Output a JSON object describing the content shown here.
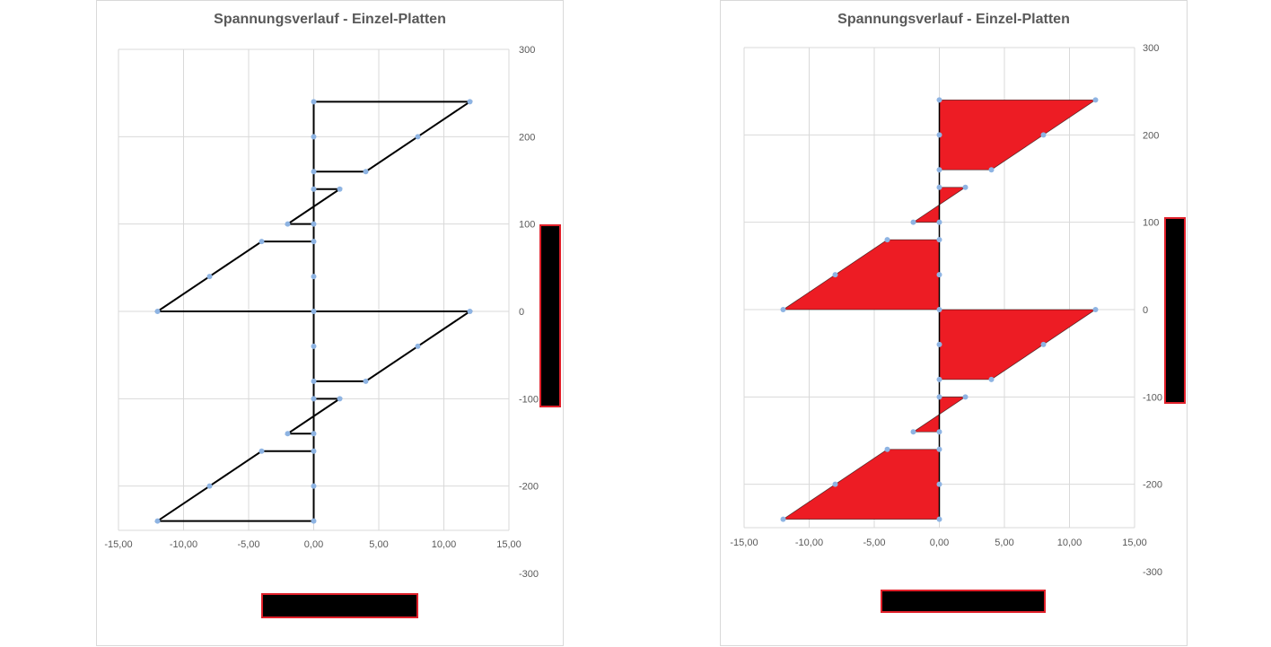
{
  "chart_data": [
    {
      "type": "line",
      "title": "Spannungsverlauf - Einzel-Platten",
      "xlabel": "",
      "ylabel": "",
      "xlim": [
        -15,
        15
      ],
      "ylim": [
        -300,
        300
      ],
      "x_ticks": [
        "-15,00",
        "-10,00",
        "-5,00",
        "0,00",
        "5,00",
        "10,00",
        "15,00"
      ],
      "y_ticks": [
        "300",
        "200",
        "100",
        "0",
        "-100",
        "-200",
        "-300"
      ],
      "grid": true,
      "series": [
        {
          "values": [
            [
              0,
              240
            ],
            [
              12,
              240
            ],
            [
              8,
              200
            ],
            [
              4,
              160
            ],
            [
              0,
              160
            ],
            [
              0,
              140
            ],
            [
              2,
              140
            ],
            [
              -2,
              100
            ],
            [
              0,
              100
            ],
            [
              0,
              80
            ],
            [
              -4,
              80
            ],
            [
              -8,
              40
            ],
            [
              -12,
              0
            ],
            [
              0,
              0
            ],
            [
              12,
              0
            ],
            [
              8,
              -40
            ],
            [
              4,
              -80
            ],
            [
              0,
              -80
            ],
            [
              0,
              -100
            ],
            [
              2,
              -100
            ],
            [
              -2,
              -140
            ],
            [
              0,
              -140
            ],
            [
              0,
              -160
            ],
            [
              -4,
              -160
            ],
            [
              -8,
              -200
            ],
            [
              -12,
              -240
            ],
            [
              0,
              -240
            ],
            [
              0,
              240
            ]
          ],
          "points": [
            [
              0,
              240
            ],
            [
              12,
              240
            ],
            [
              0,
              200
            ],
            [
              8,
              200
            ],
            [
              0,
              160
            ],
            [
              4,
              160
            ],
            [
              0,
              140
            ],
            [
              2,
              140
            ],
            [
              0,
              100
            ],
            [
              -2,
              100
            ],
            [
              0,
              80
            ],
            [
              -4,
              80
            ],
            [
              0,
              40
            ],
            [
              -8,
              40
            ],
            [
              0,
              0
            ],
            [
              -12,
              0
            ],
            [
              12,
              0
            ],
            [
              0,
              -40
            ],
            [
              8,
              -40
            ],
            [
              0,
              -80
            ],
            [
              4,
              -80
            ],
            [
              0,
              -100
            ],
            [
              2,
              -100
            ],
            [
              0,
              -140
            ],
            [
              -2,
              -140
            ],
            [
              0,
              -160
            ],
            [
              -4,
              -160
            ],
            [
              0,
              -200
            ],
            [
              -8,
              -200
            ],
            [
              0,
              -240
            ],
            [
              -12,
              -240
            ]
          ],
          "line_color": "#000000",
          "marker_color": "#8eb4e3"
        }
      ]
    },
    {
      "type": "area",
      "title": "Spannungsverlauf - Einzel-Platten",
      "xlabel": "",
      "ylabel": "",
      "xlim": [
        -15,
        15
      ],
      "ylim": [
        -300,
        300
      ],
      "x_ticks": [
        "-15,00",
        "-10,00",
        "-5,00",
        "0,00",
        "5,00",
        "10,00",
        "15,00"
      ],
      "y_ticks": [
        "300",
        "200",
        "100",
        "0",
        "-100",
        "-200",
        "-300"
      ],
      "grid": true,
      "series": [
        {
          "polygons": [
            [
              [
                0,
                240
              ],
              [
                12,
                240
              ],
              [
                4,
                160
              ],
              [
                0,
                160
              ]
            ],
            [
              [
                0,
                140
              ],
              [
                2,
                140
              ],
              [
                0,
                120
              ]
            ],
            [
              [
                0,
                120
              ],
              [
                -2,
                100
              ],
              [
                0,
                100
              ]
            ],
            [
              [
                0,
                80
              ],
              [
                -4,
                80
              ],
              [
                -12,
                0
              ],
              [
                0,
                0
              ]
            ],
            [
              [
                0,
                0
              ],
              [
                12,
                0
              ],
              [
                4,
                -80
              ],
              [
                0,
                -80
              ]
            ],
            [
              [
                0,
                -100
              ],
              [
                2,
                -100
              ],
              [
                0,
                -120
              ]
            ],
            [
              [
                0,
                -120
              ],
              [
                -2,
                -140
              ],
              [
                0,
                -140
              ]
            ],
            [
              [
                0,
                -160
              ],
              [
                -4,
                -160
              ],
              [
                -12,
                -240
              ],
              [
                0,
                -240
              ]
            ]
          ],
          "points": [
            [
              0,
              240
            ],
            [
              12,
              240
            ],
            [
              0,
              200
            ],
            [
              8,
              200
            ],
            [
              0,
              160
            ],
            [
              4,
              160
            ],
            [
              0,
              140
            ],
            [
              2,
              140
            ],
            [
              0,
              100
            ],
            [
              -2,
              100
            ],
            [
              0,
              80
            ],
            [
              -4,
              80
            ],
            [
              0,
              40
            ],
            [
              -8,
              40
            ],
            [
              0,
              0
            ],
            [
              -12,
              0
            ],
            [
              12,
              0
            ],
            [
              0,
              -40
            ],
            [
              8,
              -40
            ],
            [
              0,
              -80
            ],
            [
              4,
              -80
            ],
            [
              0,
              -100
            ],
            [
              2,
              -100
            ],
            [
              0,
              -140
            ],
            [
              -2,
              -140
            ],
            [
              0,
              -160
            ],
            [
              -4,
              -160
            ],
            [
              0,
              -200
            ],
            [
              -8,
              -200
            ],
            [
              0,
              -240
            ],
            [
              -12,
              -240
            ]
          ],
          "fill_color": "#ed1c24",
          "line_color": "#000000",
          "marker_color": "#8eb4e3"
        }
      ]
    }
  ]
}
